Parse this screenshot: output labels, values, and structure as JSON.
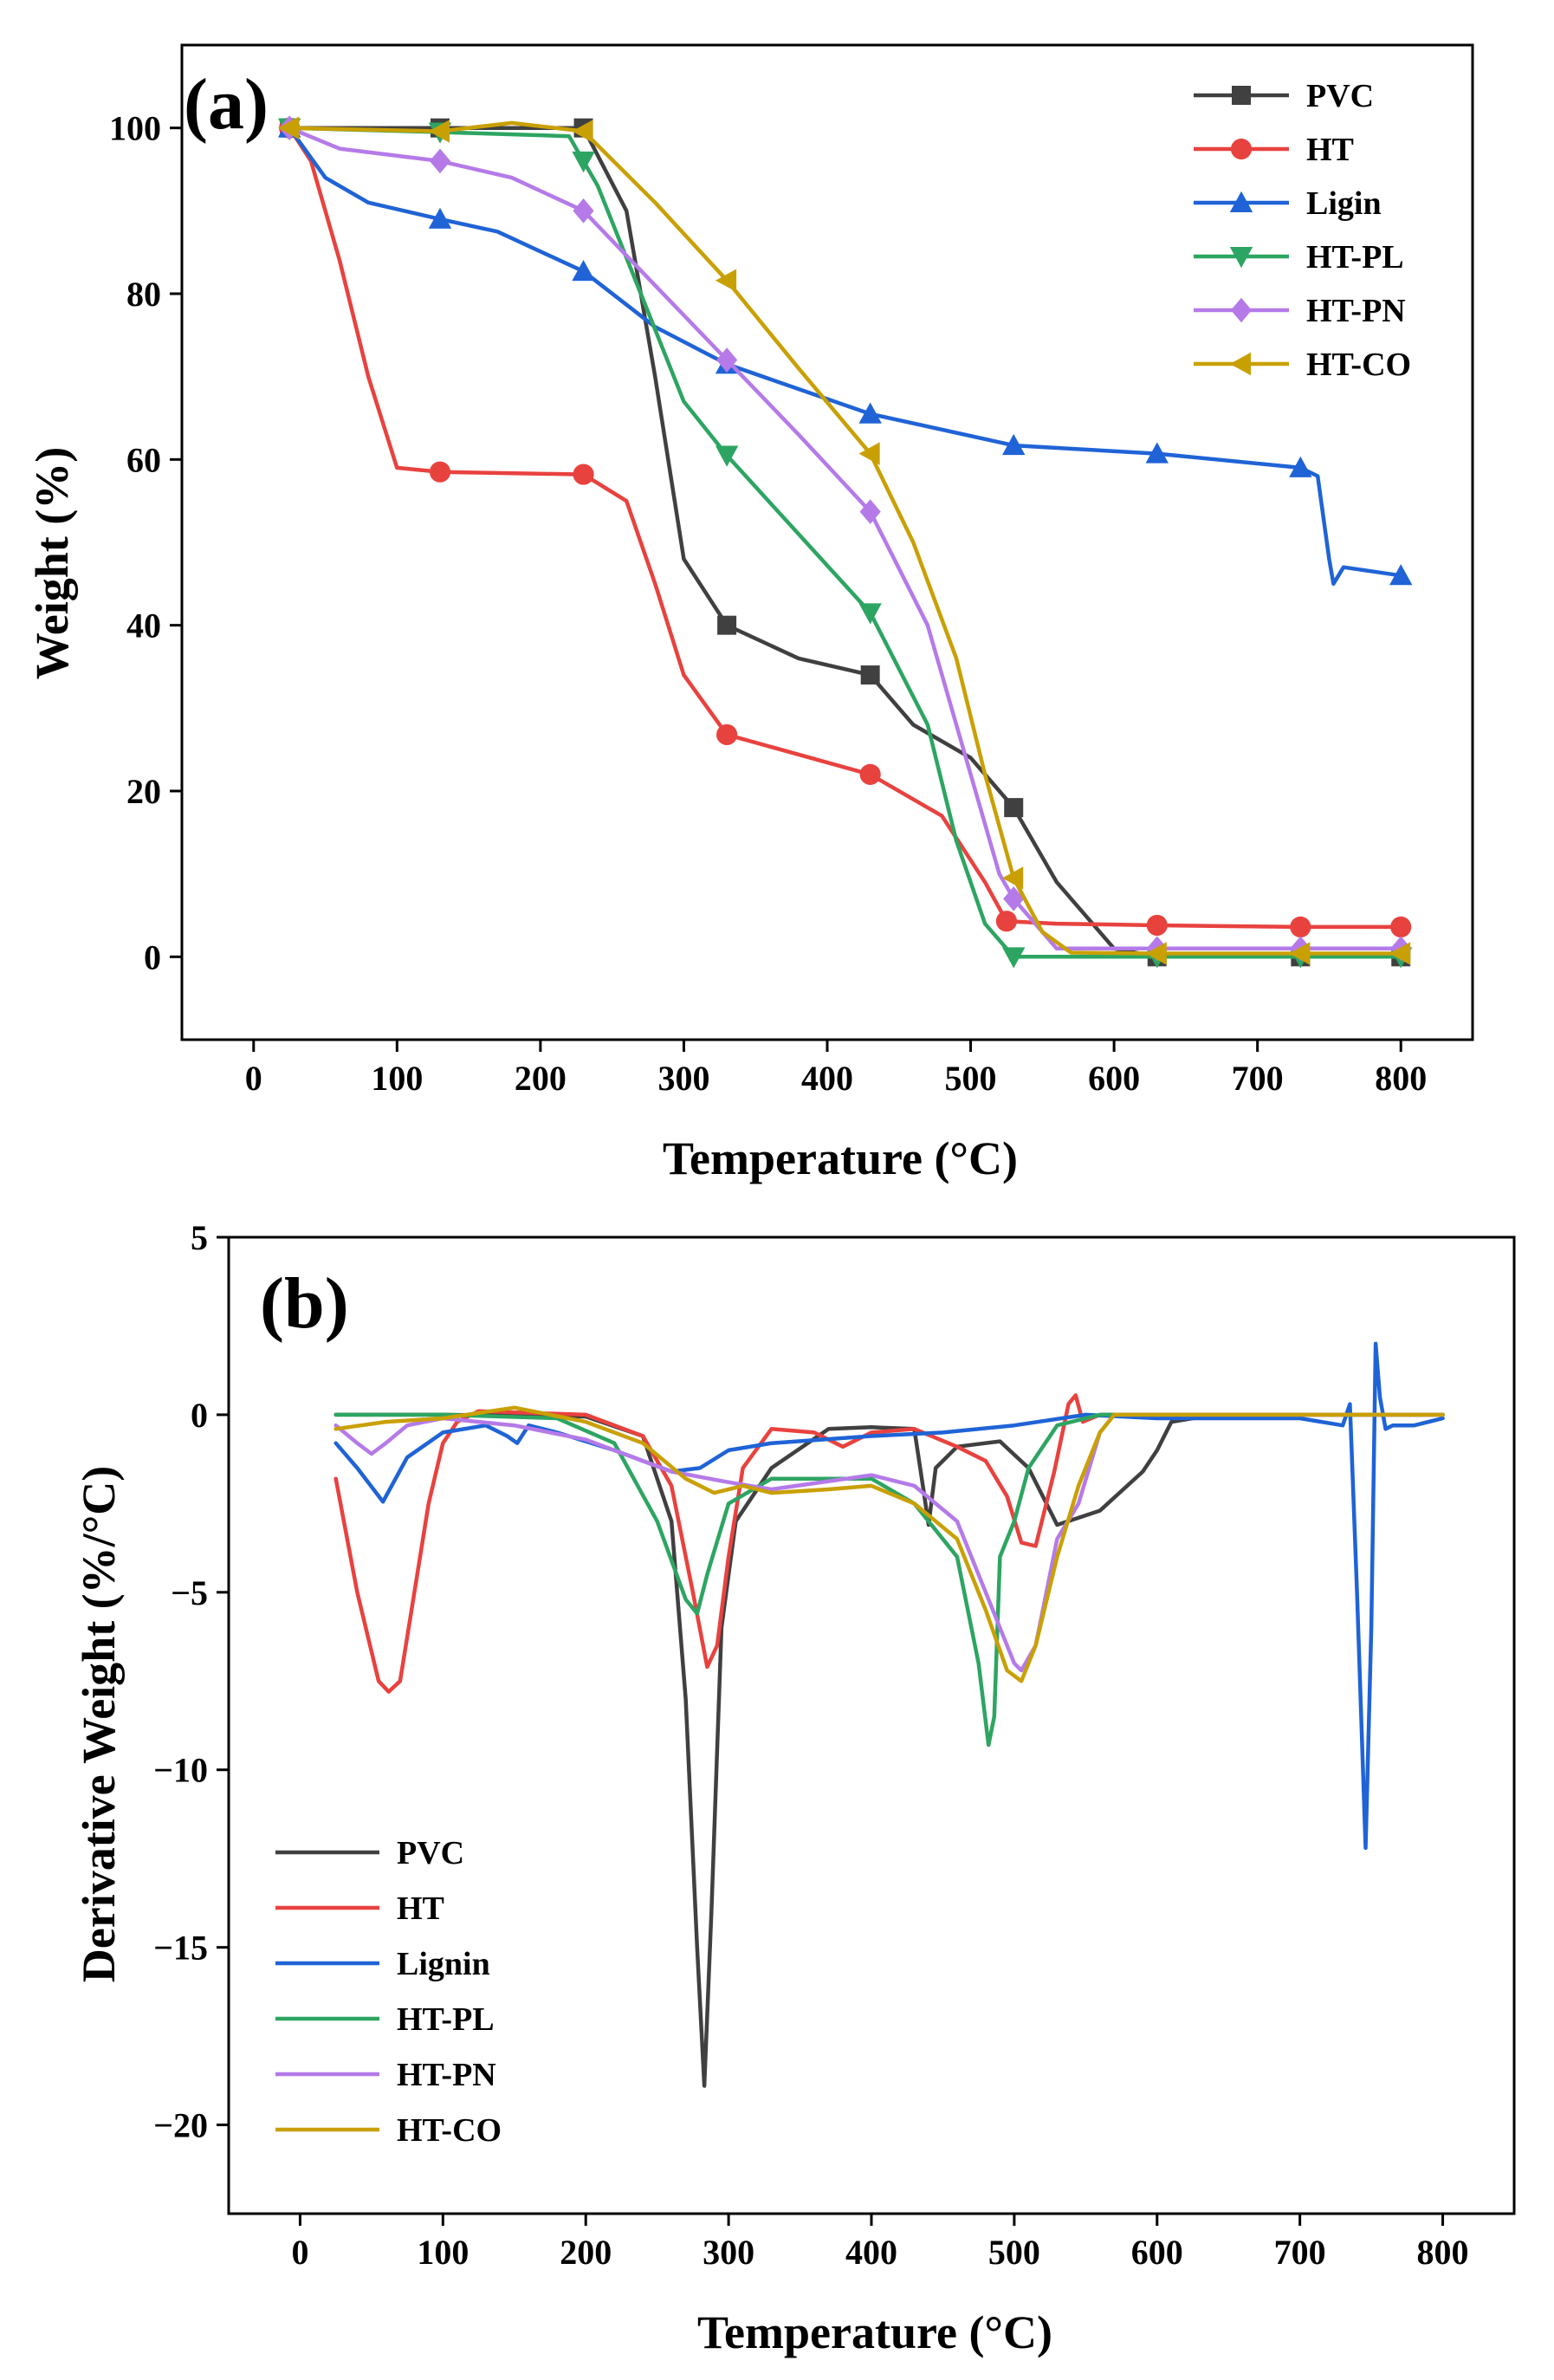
{
  "chart_data": [
    {
      "type": "line",
      "panel_label": "(a)",
      "xlabel": "Temperature (°C)",
      "ylabel": "Weight (%)",
      "xlim": [
        -50,
        850
      ],
      "ylim": [
        -10,
        110
      ],
      "xticks": [
        0,
        100,
        200,
        300,
        400,
        500,
        600,
        700,
        800
      ],
      "yticks": [
        0,
        20,
        40,
        60,
        80,
        100
      ],
      "legend_position": "top-right",
      "grid": false,
      "series": [
        {
          "name": "PVC",
          "color": "#404040",
          "marker": "square",
          "x": [
            25,
            130,
            230,
            260,
            280,
            300,
            330,
            380,
            430,
            460,
            500,
            530,
            560,
            600,
            630,
            730,
            800
          ],
          "y": [
            100,
            100,
            100,
            90,
            70,
            48,
            40,
            36,
            34,
            28,
            24,
            18,
            9,
            1,
            0,
            0,
            0
          ],
          "markers_x": [
            25,
            130,
            230,
            330,
            430,
            530,
            630,
            730,
            800
          ]
        },
        {
          "name": "HT",
          "color": "#e8423f",
          "marker": "circle",
          "x": [
            25,
            40,
            60,
            80,
            100,
            130,
            230,
            260,
            280,
            300,
            330,
            430,
            480,
            510,
            525,
            560,
            630,
            730,
            800
          ],
          "y": [
            100,
            96,
            84,
            70,
            59,
            58.5,
            58.2,
            55,
            45,
            34,
            26.8,
            22,
            17,
            9,
            4.3,
            4,
            3.8,
            3.6,
            3.6
          ],
          "markers_x": [
            25,
            130,
            230,
            330,
            430,
            525,
            630,
            730,
            800
          ]
        },
        {
          "name": "Ligin",
          "color": "#1f63d6",
          "marker": "triangle-up",
          "x": [
            25,
            50,
            80,
            130,
            170,
            230,
            280,
            330,
            430,
            530,
            630,
            730,
            742,
            750,
            753,
            760,
            800
          ],
          "y": [
            100,
            94,
            91,
            89,
            87.5,
            82.7,
            76,
            71.5,
            65.5,
            61.7,
            60.7,
            59,
            58,
            48,
            45,
            47,
            46
          ],
          "markers_x": [
            25,
            130,
            230,
            330,
            430,
            530,
            630,
            730,
            800
          ]
        },
        {
          "name": "HT-PL",
          "color": "#2da562",
          "marker": "triangle-down",
          "x": [
            25,
            130,
            220,
            240,
            270,
            300,
            330,
            380,
            430,
            470,
            490,
            510,
            530,
            630,
            730,
            800
          ],
          "y": [
            100,
            99.5,
            99,
            93,
            80,
            67,
            60.5,
            51,
            41.5,
            28,
            14,
            4,
            0,
            0,
            0,
            0
          ],
          "markers_x": [
            25,
            130,
            230,
            330,
            430,
            530,
            630,
            730,
            800
          ]
        },
        {
          "name": "HT-PN",
          "color": "#b57ae8",
          "marker": "diamond",
          "x": [
            25,
            60,
            130,
            180,
            230,
            280,
            330,
            380,
            430,
            470,
            500,
            520,
            530,
            560,
            630,
            730,
            800
          ],
          "y": [
            100,
            97.5,
            96,
            94,
            90,
            81,
            72,
            63,
            53.7,
            40,
            22,
            10,
            7,
            1,
            1,
            1,
            1
          ],
          "markers_x": [
            25,
            130,
            230,
            330,
            430,
            530,
            630,
            730,
            800
          ]
        },
        {
          "name": "HT-CO",
          "color": "#c9a004",
          "marker": "triangle-left",
          "x": [
            25,
            130,
            180,
            230,
            280,
            330,
            380,
            430,
            460,
            490,
            510,
            530,
            550,
            570,
            630,
            730,
            800
          ],
          "y": [
            100,
            99.6,
            100.6,
            99.6,
            91,
            81.6,
            71,
            60.7,
            50,
            36,
            22,
            9.5,
            3,
            0.5,
            0.4,
            0.4,
            0.4
          ],
          "markers_x": [
            25,
            130,
            230,
            330,
            430,
            530,
            630,
            730,
            800
          ]
        }
      ]
    },
    {
      "type": "line",
      "panel_label": "(b)",
      "xlabel": "Temperature (°C)",
      "ylabel": "Derivative Weight (%/°C)",
      "xlim": [
        -50,
        850
      ],
      "ylim": [
        -22.5,
        5
      ],
      "xticks": [
        0,
        100,
        200,
        300,
        400,
        500,
        600,
        700,
        800
      ],
      "yticks": [
        5,
        0,
        -5,
        -10,
        -15,
        -20
      ],
      "legend_position": "bottom-left",
      "grid": false,
      "series": [
        {
          "name": "PVC",
          "color": "#404040",
          "x": [
            25,
            100,
            200,
            240,
            260,
            270,
            278,
            283,
            288,
            295,
            305,
            330,
            370,
            400,
            430,
            436,
            440,
            445,
            460,
            490,
            510,
            530,
            560,
            590,
            600,
            610,
            640,
            700,
            800
          ],
          "y": [
            0,
            0,
            -0.05,
            -0.6,
            -3,
            -8,
            -15,
            -18.9,
            -14,
            -6,
            -3,
            -1.5,
            -0.4,
            -0.35,
            -0.4,
            -2,
            -3.1,
            -1.5,
            -0.9,
            -0.75,
            -1.5,
            -3.1,
            -2.7,
            -1.6,
            -1,
            -0.2,
            0,
            0,
            0
          ]
        },
        {
          "name": "HT",
          "color": "#e8423f",
          "x": [
            25,
            40,
            55,
            62,
            70,
            80,
            90,
            100,
            110,
            125,
            200,
            240,
            260,
            275,
            285,
            292,
            300,
            310,
            330,
            360,
            380,
            400,
            430,
            460,
            480,
            495,
            505,
            515,
            528,
            538,
            543,
            548,
            560,
            800
          ],
          "y": [
            -1.8,
            -5,
            -7.5,
            -7.8,
            -7.5,
            -5,
            -2.5,
            -0.8,
            -0.2,
            0.1,
            0,
            -0.6,
            -2,
            -5,
            -7.1,
            -6.5,
            -4,
            -1.5,
            -0.4,
            -0.5,
            -0.9,
            -0.5,
            -0.4,
            -0.9,
            -1.3,
            -2.3,
            -3.6,
            -3.7,
            -1.6,
            0.3,
            0.55,
            -0.2,
            0,
            0
          ]
        },
        {
          "name": "Lignin",
          "color": "#1f63d6",
          "x": [
            25,
            40,
            58,
            75,
            100,
            130,
            145,
            152,
            160,
            180,
            220,
            260,
            280,
            300,
            330,
            400,
            450,
            500,
            550,
            600,
            700,
            730,
            735,
            740,
            746,
            750,
            753,
            756,
            760,
            765,
            780,
            800
          ],
          "y": [
            -0.8,
            -1.5,
            -2.45,
            -1.2,
            -0.5,
            -0.3,
            -0.6,
            -0.8,
            -0.3,
            -0.5,
            -1,
            -1.6,
            -1.5,
            -1,
            -0.8,
            -0.6,
            -0.5,
            -0.3,
            0,
            -0.1,
            -0.1,
            -0.3,
            0.3,
            -5,
            -12.2,
            -6,
            2,
            0.5,
            -0.4,
            -0.3,
            -0.3,
            -0.1
          ]
        },
        {
          "name": "HT-PL",
          "color": "#2da562",
          "x": [
            25,
            100,
            180,
            220,
            250,
            270,
            278,
            285,
            300,
            330,
            400,
            430,
            460,
            475,
            482,
            486,
            490,
            500,
            510,
            530,
            560,
            800
          ],
          "y": [
            0,
            0,
            -0.1,
            -0.8,
            -3,
            -5.2,
            -5.6,
            -4.5,
            -2.5,
            -1.8,
            -1.8,
            -2.5,
            -4,
            -7,
            -9.3,
            -8.5,
            -4,
            -3,
            -1.5,
            -0.3,
            0,
            0
          ]
        },
        {
          "name": "HT-PN",
          "color": "#b57ae8",
          "x": [
            25,
            40,
            50,
            60,
            75,
            100,
            150,
            200,
            260,
            300,
            330,
            400,
            430,
            460,
            480,
            500,
            505,
            515,
            530,
            545,
            560,
            570,
            800
          ],
          "y": [
            -0.3,
            -0.8,
            -1.1,
            -0.8,
            -0.3,
            -0.1,
            -0.3,
            -0.7,
            -1.6,
            -1.9,
            -2.1,
            -1.7,
            -2,
            -3,
            -5,
            -7,
            -7.2,
            -6.5,
            -3.5,
            -2.5,
            -0.5,
            0,
            0
          ]
        },
        {
          "name": "HT-CO",
          "color": "#c9a004",
          "x": [
            25,
            60,
            100,
            150,
            200,
            240,
            270,
            290,
            310,
            330,
            370,
            400,
            430,
            460,
            480,
            495,
            505,
            515,
            530,
            545,
            560,
            570,
            800
          ],
          "y": [
            -0.4,
            -0.2,
            -0.1,
            0.2,
            -0.2,
            -0.8,
            -1.8,
            -2.2,
            -2,
            -2.2,
            -2.1,
            -2,
            -2.5,
            -3.5,
            -5.5,
            -7.2,
            -7.5,
            -6.5,
            -4,
            -2,
            -0.5,
            0,
            0
          ]
        }
      ]
    }
  ]
}
